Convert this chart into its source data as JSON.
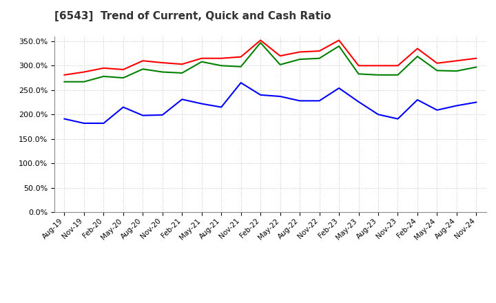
{
  "title": "[6543]  Trend of Current, Quick and Cash Ratio",
  "x_labels": [
    "Aug-19",
    "Nov-19",
    "Feb-20",
    "May-20",
    "Aug-20",
    "Nov-20",
    "Feb-21",
    "May-21",
    "Aug-21",
    "Nov-21",
    "Feb-22",
    "May-22",
    "Aug-22",
    "Nov-22",
    "Feb-23",
    "May-23",
    "Aug-23",
    "Nov-23",
    "Feb-24",
    "May-24",
    "Aug-24",
    "Nov-24"
  ],
  "current_ratio": [
    281,
    287,
    295,
    292,
    310,
    306,
    303,
    315,
    315,
    318,
    352,
    320,
    328,
    330,
    352,
    300,
    300,
    300,
    335,
    305,
    310,
    315
  ],
  "quick_ratio": [
    267,
    267,
    278,
    275,
    293,
    287,
    285,
    308,
    300,
    298,
    347,
    302,
    313,
    315,
    340,
    283,
    281,
    281,
    319,
    290,
    289,
    297
  ],
  "cash_ratio": [
    191,
    182,
    182,
    215,
    198,
    199,
    231,
    222,
    215,
    265,
    240,
    237,
    228,
    228,
    254,
    226,
    200,
    191,
    230,
    209,
    218,
    225
  ],
  "current_color": "#FF0000",
  "quick_color": "#008000",
  "cash_color": "#0000FF",
  "ylim": [
    0,
    360
  ],
  "yticks": [
    0,
    50,
    100,
    150,
    200,
    250,
    300,
    350
  ],
  "background_color": "#FFFFFF",
  "grid_color": "#BBBBBB",
  "title_color": "#333333"
}
